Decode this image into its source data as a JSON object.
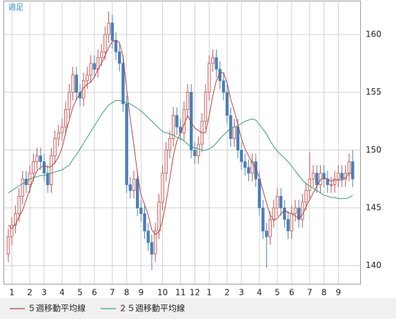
{
  "chart_data": {
    "type": "candlestick",
    "label": "週足",
    "categories": [
      null,
      "1",
      null,
      null,
      null,
      null,
      "2",
      null,
      null,
      null,
      "3",
      null,
      null,
      null,
      null,
      "4",
      null,
      null,
      null,
      null,
      "5",
      null,
      null,
      null,
      "6",
      null,
      null,
      null,
      null,
      "7",
      null,
      null,
      null,
      "8",
      null,
      null,
      null,
      "9",
      null,
      null,
      null,
      null,
      null,
      "10",
      null,
      null,
      null,
      null,
      "11",
      null,
      null,
      null,
      "12",
      null,
      null,
      null,
      "1",
      null,
      null,
      null,
      null,
      "2",
      null,
      null,
      null,
      "3",
      null,
      null,
      null,
      null,
      "4",
      null,
      null,
      null,
      null,
      "5",
      null,
      null,
      null,
      "6",
      null,
      null,
      null,
      null,
      "7",
      null,
      null,
      null,
      "8",
      null,
      null,
      null,
      "9",
      null,
      null,
      null,
      null
    ],
    "open": [
      141,
      142.5,
      143.5,
      144.5,
      146,
      147.5,
      147,
      148,
      149,
      149.5,
      149,
      148,
      147,
      149.5,
      151,
      151.5,
      152,
      153.5,
      155,
      156.5,
      155,
      154.5,
      156,
      156.5,
      157.5,
      157,
      158,
      158.5,
      160,
      161,
      159.5,
      158.5,
      157.5,
      154,
      147,
      146.5,
      147.5,
      145,
      144.5,
      143,
      142,
      141,
      143,
      145.5,
      148,
      150,
      151,
      153,
      152,
      151.5,
      153.5,
      155,
      150,
      149.5,
      150.5,
      152.5,
      155,
      157.5,
      158,
      157,
      156,
      155,
      153,
      151,
      152,
      150,
      149,
      148.5,
      148,
      149,
      147.5,
      145,
      143,
      142.5,
      144,
      145,
      146,
      145,
      144,
      143,
      144.5,
      145,
      144,
      145.5,
      146.5,
      147.5,
      148,
      147,
      148,
      147.5,
      147,
      147,
      147.5,
      148,
      147.5,
      148,
      149
    ],
    "high": [
      143.2,
      144.2,
      145.2,
      146.7,
      148.2,
      148.2,
      148.7,
      149.7,
      150.2,
      150.2,
      149.7,
      148.7,
      150.2,
      151.7,
      152.2,
      152.7,
      154.2,
      155.7,
      157.2,
      157.2,
      155.7,
      156.7,
      157.2,
      158.2,
      158.2,
      158.7,
      159.2,
      160.7,
      162,
      161.7,
      160.2,
      159.2,
      158.2,
      154.7,
      147.7,
      148.2,
      148.2,
      145.7,
      145.2,
      143.7,
      142.7,
      143.7,
      146.2,
      148.7,
      150.7,
      151.7,
      153.7,
      153.7,
      152.7,
      154.2,
      155.7,
      155.7,
      150.7,
      151.2,
      153.2,
      155.7,
      158.2,
      158.7,
      158.7,
      157.7,
      156.7,
      155.7,
      153.7,
      152.7,
      152.7,
      150.7,
      149.7,
      149.2,
      149.7,
      149.7,
      148.2,
      145.7,
      143.7,
      144.7,
      145.7,
      146.7,
      146.7,
      145.7,
      144.7,
      145.2,
      145.7,
      145.7,
      146.2,
      147.2,
      149.8,
      148.7,
      148.7,
      148.7,
      148.7,
      148.2,
      147.7,
      148.2,
      148.7,
      148.7,
      148.7,
      149.7,
      150
    ],
    "low": [
      140.3,
      141.8,
      142.8,
      143.8,
      145.3,
      146.3,
      146.3,
      147.3,
      148.3,
      148.3,
      147.3,
      146.3,
      146.3,
      148.8,
      150.3,
      150.8,
      151.3,
      152.8,
      154.3,
      154.3,
      153.8,
      153.8,
      155.3,
      155.8,
      156.3,
      156.3,
      157.3,
      157.8,
      159.3,
      158.8,
      157.8,
      156.8,
      153.3,
      146.3,
      145.8,
      145.8,
      144.3,
      143.8,
      142.3,
      141.3,
      139.6,
      140.3,
      142.3,
      144.8,
      147.3,
      149.3,
      150.3,
      151.3,
      150.8,
      150.8,
      152.8,
      149.3,
      148.8,
      148.8,
      149.8,
      151.8,
      154.3,
      156.8,
      156.3,
      155.3,
      154.3,
      152.3,
      150.3,
      150.3,
      149.3,
      148.3,
      147.8,
      147.3,
      147.3,
      146.8,
      144.3,
      142.3,
      139.8,
      141.8,
      143.3,
      144.3,
      144.3,
      143.3,
      142.3,
      142.3,
      143.8,
      143.3,
      143.3,
      144.8,
      145.8,
      146.8,
      146.3,
      146.3,
      146.8,
      146.3,
      146.3,
      146.3,
      146.8,
      146.8,
      146.8,
      147.3,
      146.8
    ],
    "close": [
      142.5,
      143.5,
      144.5,
      146,
      147.5,
      147,
      148,
      149,
      149.5,
      149,
      148,
      147,
      149.5,
      151,
      151.5,
      152,
      153.5,
      155,
      156.5,
      155,
      154.5,
      156,
      156.5,
      157.5,
      157,
      158,
      158.5,
      160,
      161,
      159.5,
      158.5,
      157.5,
      154,
      147,
      146.5,
      147.5,
      145,
      144.5,
      143,
      142,
      141,
      143,
      145.5,
      148,
      150,
      151,
      153,
      152,
      151.5,
      153.5,
      155,
      150,
      149.5,
      150.5,
      152.5,
      155,
      157.5,
      158,
      157,
      156,
      155,
      153,
      151,
      152,
      150,
      149,
      148.5,
      148,
      149,
      147.5,
      145,
      143,
      142.5,
      144,
      145,
      146,
      145,
      144,
      143,
      144.5,
      145,
      144,
      145.5,
      146.5,
      147.5,
      148,
      147,
      148,
      147.5,
      147,
      147,
      147.5,
      148,
      147.5,
      148,
      149,
      147.5
    ],
    "up_color": "#c0504d",
    "down_color": "#4a7fb8",
    "series": [
      {
        "name": "５週移動平均線",
        "color": "#b0413e",
        "values": [
          143.5,
          143.2,
          143.6,
          144.2,
          144.8,
          145.7,
          146.6,
          147.5,
          148.2,
          148.5,
          148.7,
          148.5,
          148.6,
          148.9,
          149.4,
          150.2,
          151.5,
          152.6,
          153.7,
          154.4,
          154.9,
          155.4,
          155.7,
          155.9,
          156.3,
          157.0,
          157.5,
          158.2,
          158.9,
          159.4,
          159.5,
          159.3,
          158.1,
          155.3,
          152.7,
          150.5,
          148.0,
          146.1,
          145.3,
          144.4,
          143.1,
          142.7,
          142.9,
          143.9,
          145.5,
          147.5,
          149.5,
          150.8,
          151.5,
          152.2,
          153.0,
          152.4,
          151.9,
          151.7,
          151.5,
          151.5,
          153.0,
          154.7,
          156.0,
          156.7,
          156.7,
          155.8,
          154.4,
          153.4,
          152.2,
          151.0,
          150.1,
          149.5,
          148.9,
          148.4,
          147.6,
          146.5,
          145.4,
          144.4,
          143.9,
          144.1,
          144.5,
          144.8,
          144.6,
          144.5,
          144.3,
          144.1,
          144.4,
          145.1,
          145.7,
          146.3,
          146.9,
          147.4,
          147.6,
          147.5,
          147.3,
          147.4,
          147.4,
          147.4,
          147.6,
          148.0,
          148.0
        ]
      },
      {
        "name": "２５週移動平均線",
        "color": "#2e9e78",
        "values": [
          146.3,
          146.5,
          146.7,
          146.9,
          147.1,
          147.3,
          147.5,
          147.6,
          147.7,
          147.8,
          147.8,
          147.9,
          148.0,
          148.1,
          148.2,
          148.3,
          148.5,
          148.7,
          149.2,
          149.6,
          150.1,
          150.6,
          151.1,
          151.6,
          152.1,
          152.6,
          153.1,
          153.5,
          153.9,
          154.1,
          154.3,
          154.3,
          154.2,
          154.1,
          154.0,
          153.8,
          153.6,
          153.4,
          153.1,
          152.8,
          152.5,
          152.2,
          151.9,
          151.6,
          151.5,
          151.4,
          151.3,
          151.1,
          151.0,
          150.8,
          150.5,
          150.3,
          150.2,
          150.1,
          150.0,
          150.0,
          150.1,
          150.3,
          150.6,
          151.0,
          151.3,
          151.6,
          151.9,
          152.0,
          152.1,
          152.3,
          152.5,
          152.6,
          152.7,
          152.6,
          152.2,
          151.8,
          151.4,
          150.8,
          150.3,
          149.9,
          149.6,
          149.3,
          149.0,
          148.6,
          148.2,
          147.8,
          147.4,
          147.1,
          146.9,
          146.7,
          146.5,
          146.3,
          146.1,
          146.0,
          145.9,
          145.9,
          145.8,
          145.8,
          145.8,
          145.9,
          146.1
        ]
      }
    ],
    "ylim": [
      138.4,
      162.9
    ],
    "yticks": [
      140,
      145,
      150,
      155,
      160
    ],
    "grid": true
  }
}
